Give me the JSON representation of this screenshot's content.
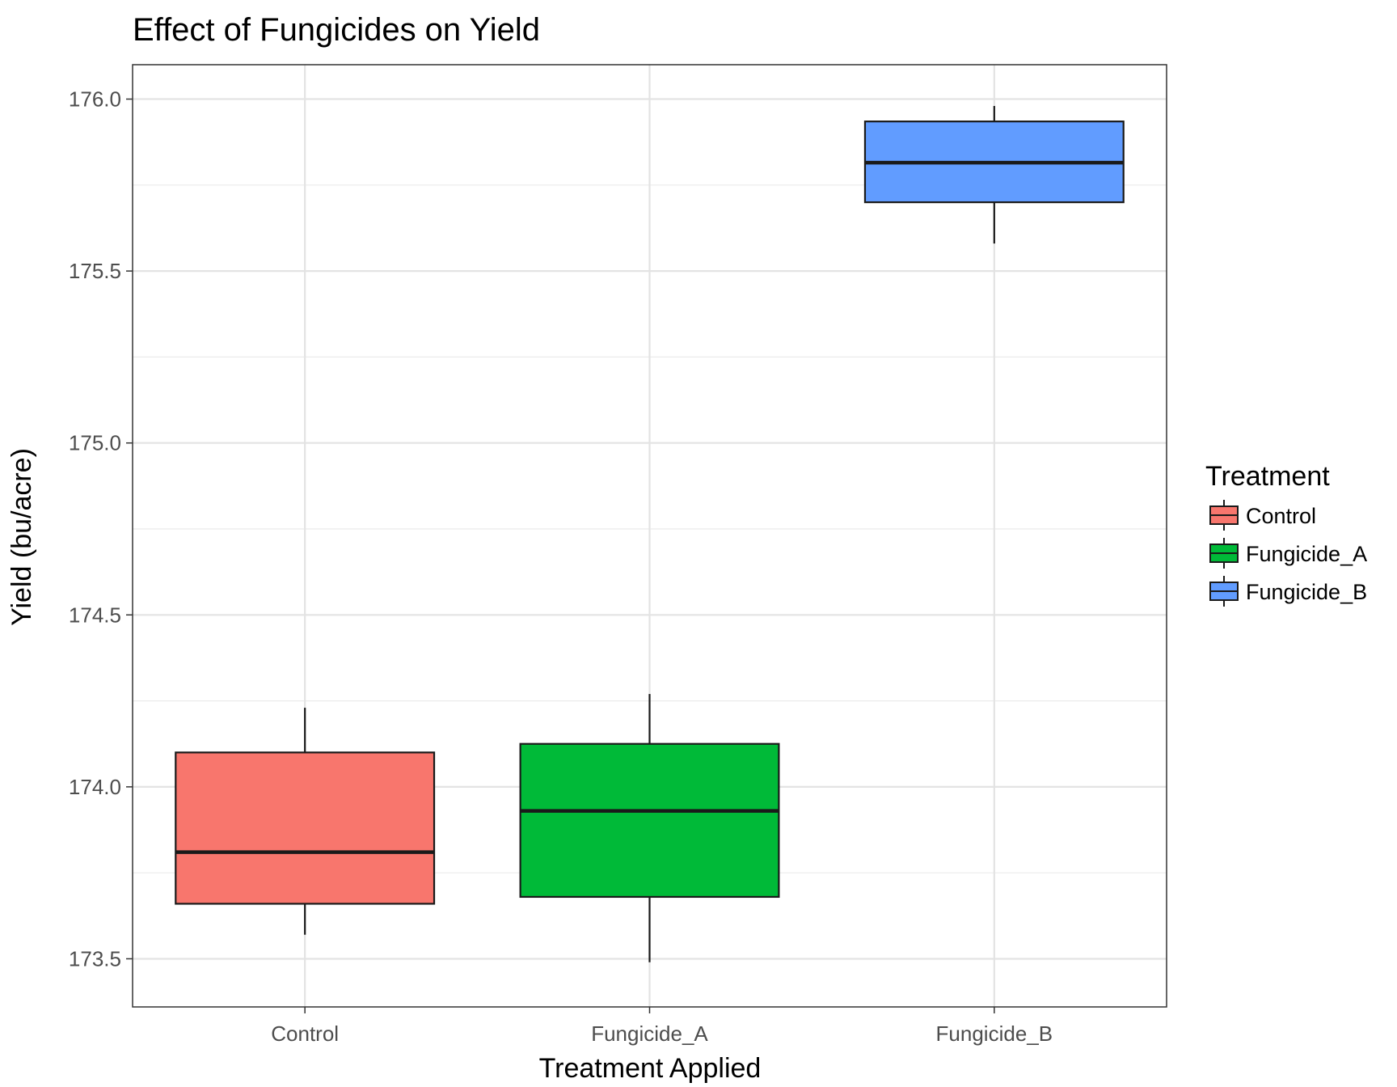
{
  "chart_data": {
    "type": "boxplot",
    "title": "Effect of Fungicides on Yield",
    "xlabel": "Treatment Applied",
    "ylabel": "Yield (bu/acre)",
    "ylim": [
      173.36,
      176.1
    ],
    "y_ticks": [
      "173.5",
      "174.0",
      "174.5",
      "175.0",
      "175.5",
      "176.0"
    ],
    "y_tick_values": [
      173.5,
      174.0,
      174.5,
      175.0,
      175.5,
      176.0
    ],
    "categories": [
      "Control",
      "Fungicide_A",
      "Fungicide_B"
    ],
    "boxes": [
      {
        "name": "Control",
        "color": "#F8766D",
        "min": 173.57,
        "q1": 173.66,
        "median": 173.81,
        "q3": 174.1,
        "max": 174.23
      },
      {
        "name": "Fungicide_A",
        "color": "#00BA38",
        "min": 173.49,
        "q1": 173.68,
        "median": 173.93,
        "q3": 174.125,
        "max": 174.27
      },
      {
        "name": "Fungicide_B",
        "color": "#619CFF",
        "min": 175.58,
        "q1": 175.7,
        "median": 175.815,
        "q3": 175.935,
        "max": 175.98
      }
    ],
    "grid": true,
    "legend": {
      "title": "Treatment",
      "position": "right",
      "entries": [
        "Control",
        "Fungicide_A",
        "Fungicide_B"
      ]
    }
  }
}
